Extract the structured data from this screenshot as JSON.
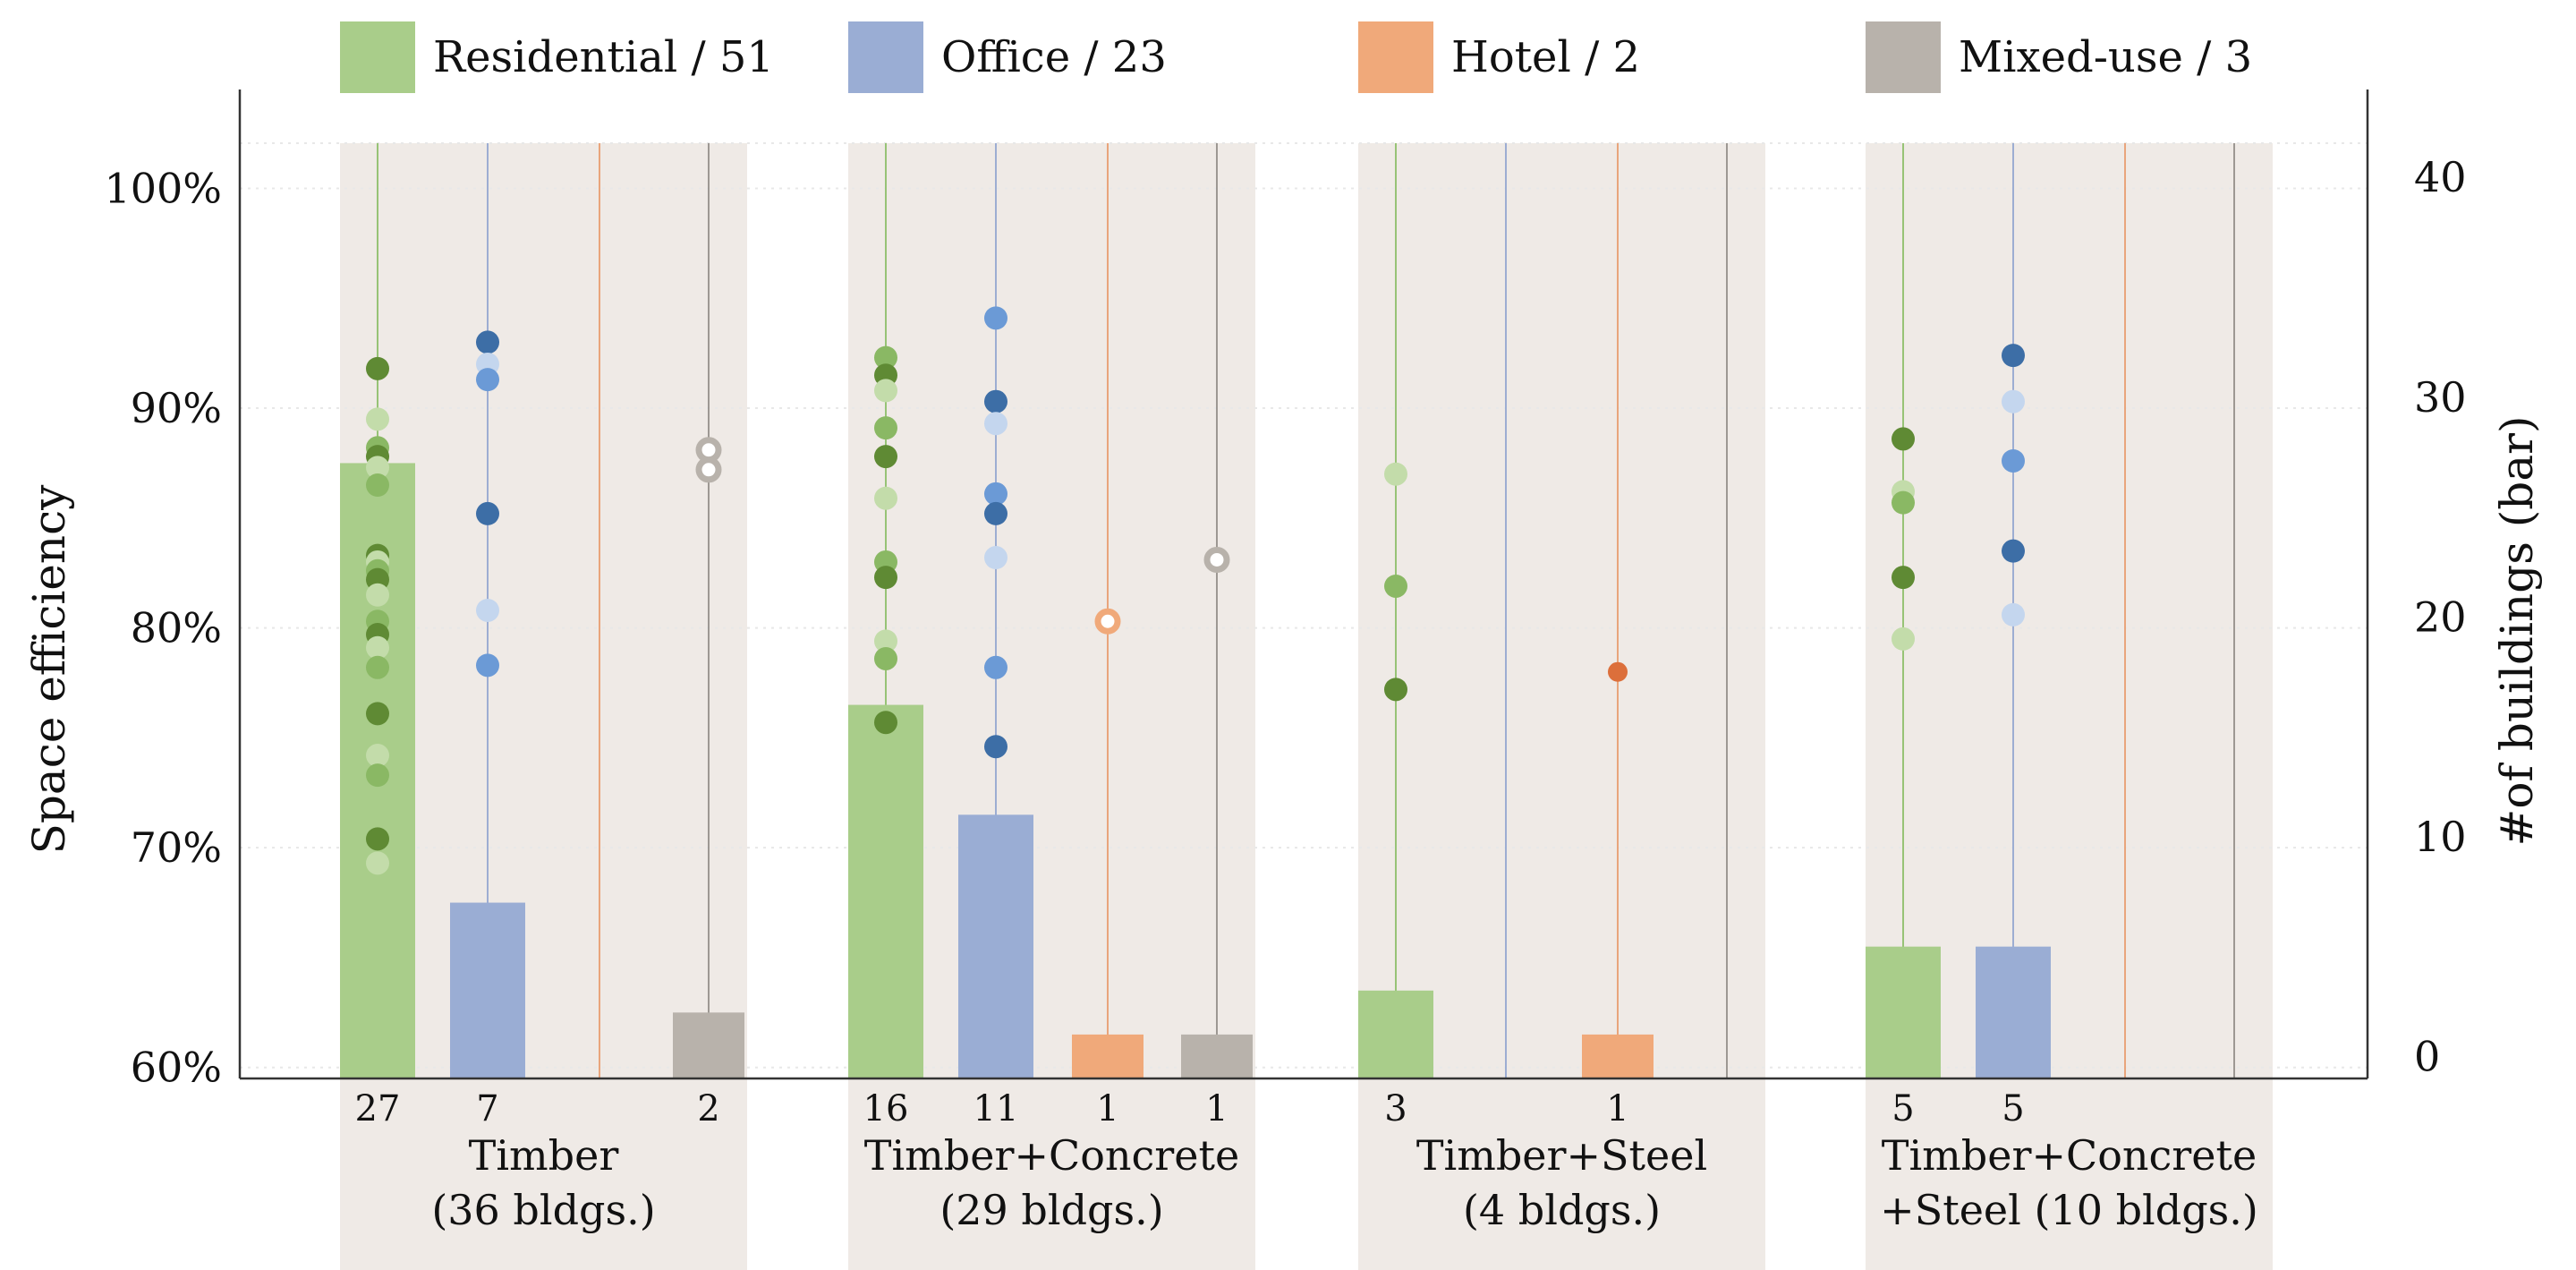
{
  "chart_data": {
    "type": "bar+scatter",
    "ylabel_left": "Space efficiency",
    "ylabel_right": "#of buildings (bar)",
    "ylim_left_pct": [
      59.5,
      104.5
    ],
    "ylim_right": [
      -1,
      44
    ],
    "left_ticks": [
      "60%",
      "70%",
      "80%",
      "90%",
      "100%"
    ],
    "left_tick_values": [
      60,
      70,
      80,
      90,
      100
    ],
    "right_ticks": [
      "0",
      "10",
      "20",
      "30",
      "40"
    ],
    "right_tick_values": [
      0,
      10,
      20,
      30,
      40
    ],
    "legend": [
      {
        "key": "residential",
        "label": "Residential / 51",
        "color": "#a9cd8a"
      },
      {
        "key": "office",
        "label": "Office / 23",
        "color": "#9aadd4"
      },
      {
        "key": "hotel",
        "label": "Hotel / 2",
        "color": "#f0a97a"
      },
      {
        "key": "mixed",
        "label": "Mixed-use / 3",
        "color": "#b8b2ab"
      }
    ],
    "colors": {
      "residential": {
        "bar": "#a9cd8a",
        "line": "#88bd63",
        "dots": [
          "#5f8a34",
          "#8ab864",
          "#c3dcaa"
        ]
      },
      "office": {
        "bar": "#9aadd4",
        "line": "#8fa3cf",
        "dots": [
          "#3d6ea6",
          "#6b9ad6",
          "#c4d6ee"
        ]
      },
      "hotel": {
        "bar": "#f0a97a",
        "line": "#e9996a",
        "dots": [
          "#dc6f3b",
          "#f0a97a"
        ]
      },
      "mixed": {
        "bar": "#b8b2ab",
        "line": "#8f8a85",
        "dots": [
          "#b8b2ab"
        ]
      },
      "panel": "#efeae6",
      "gridline": "#e8e8e8"
    },
    "groups": [
      {
        "label_line1": "Timber",
        "label_line2": "(36 bldgs.)",
        "series": [
          {
            "type": "residential",
            "count": 27,
            "count_label": "27",
            "efficiency": [
              91.8,
              89.5,
              88.2,
              87.8,
              87.3,
              86.5,
              83.3,
              83.0,
              82.6,
              82.2,
              81.5,
              80.3,
              79.7,
              79.1,
              78.2,
              76.1,
              74.2,
              73.3,
              70.4,
              69.3
            ]
          },
          {
            "type": "office",
            "count": 7,
            "count_label": "7",
            "efficiency": [
              93.0,
              92.0,
              91.3,
              85.2,
              80.8,
              78.3
            ]
          },
          {
            "type": "hotel",
            "count": 0,
            "count_label": "",
            "efficiency": []
          },
          {
            "type": "mixed",
            "count": 2,
            "count_label": "2",
            "efficiency": [
              88.1,
              87.2
            ]
          }
        ]
      },
      {
        "label_line1": "Timber+Concrete",
        "label_line2": "(29 bldgs.)",
        "series": [
          {
            "type": "residential",
            "count": 16,
            "count_label": "16",
            "efficiency": [
              92.3,
              91.5,
              90.8,
              89.1,
              87.8,
              85.9,
              83.0,
              82.3,
              79.4,
              78.6,
              75.7
            ]
          },
          {
            "type": "office",
            "count": 11,
            "count_label": "11",
            "efficiency": [
              94.1,
              90.3,
              89.3,
              86.1,
              85.2,
              83.2,
              78.2,
              74.6
            ]
          },
          {
            "type": "hotel",
            "count": 1,
            "count_label": "1",
            "efficiency": [
              80.3
            ]
          },
          {
            "type": "mixed",
            "count": 1,
            "count_label": "1",
            "efficiency": [
              83.1
            ]
          }
        ]
      },
      {
        "label_line1": "Timber+Steel",
        "label_line2": "(4 bldgs.)",
        "series": [
          {
            "type": "residential",
            "count": 3,
            "count_label": "3",
            "efficiency": [
              87.0,
              81.9,
              77.2
            ]
          },
          {
            "type": "office",
            "count": 0,
            "count_label": "",
            "efficiency": []
          },
          {
            "type": "hotel",
            "count": 1,
            "count_label": "1",
            "efficiency": [
              78.0
            ]
          },
          {
            "type": "mixed",
            "count": 0,
            "count_label": "",
            "efficiency": []
          }
        ]
      },
      {
        "label_line1": "Timber+Concrete",
        "label_line2": "+Steel (10 bldgs.)",
        "series": [
          {
            "type": "residential",
            "count": 5,
            "count_label": "5",
            "efficiency": [
              88.6,
              86.2,
              85.7,
              82.3,
              79.5
            ]
          },
          {
            "type": "office",
            "count": 5,
            "count_label": "5",
            "efficiency": [
              92.4,
              90.3,
              87.6,
              83.5,
              80.6
            ]
          },
          {
            "type": "hotel",
            "count": 0,
            "count_label": "",
            "efficiency": []
          },
          {
            "type": "mixed",
            "count": 0,
            "count_label": "",
            "efficiency": []
          }
        ]
      }
    ]
  }
}
